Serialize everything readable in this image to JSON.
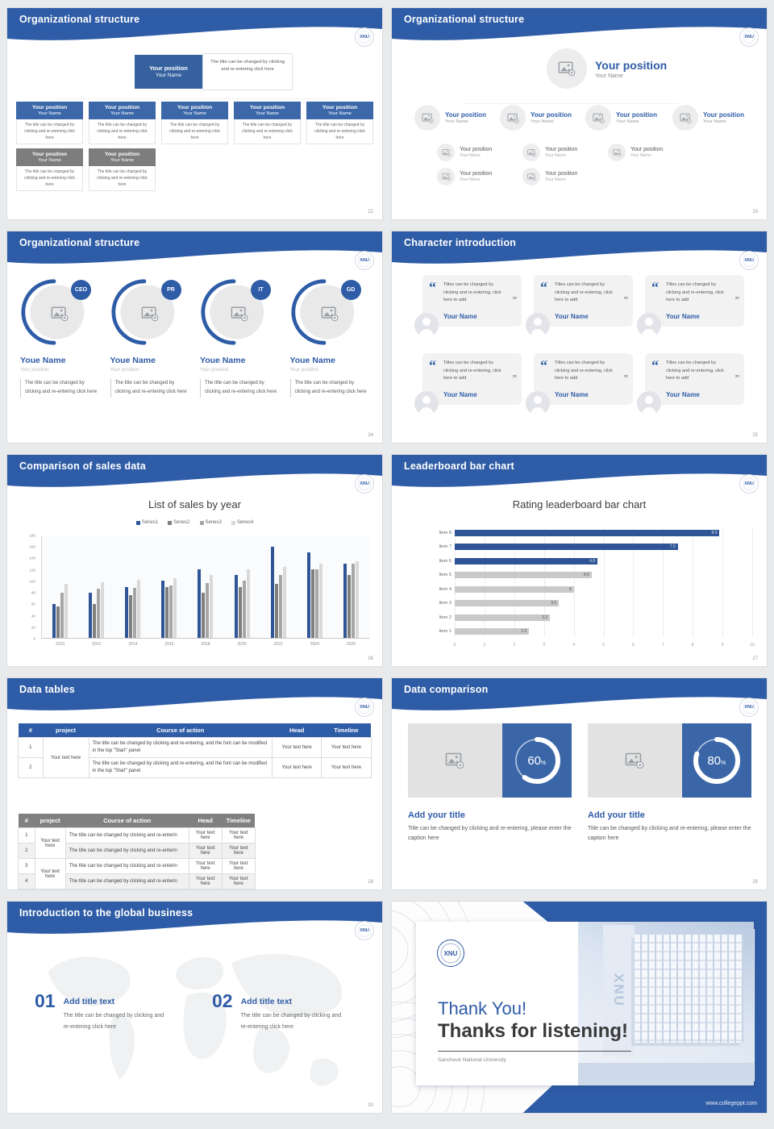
{
  "app": {
    "logo_text": "XNU",
    "accent_blue": "#2e5ca6",
    "box_blue": "#3c68aa",
    "gray_box": "#7d7d7d"
  },
  "slides": {
    "s22": {
      "title": "Organizational structure",
      "page": "22",
      "box_title": "Your position",
      "box_name": "Your Name",
      "desc": "The title can be changed by clicking and re-entering click here"
    },
    "s23": {
      "title": "Organizational structure",
      "page": "23",
      "position": "Your position",
      "name": "Your Name"
    },
    "s24": {
      "title": "Organizational structure",
      "page": "24",
      "badges": [
        "CEO",
        "PR",
        "IT",
        "GD"
      ],
      "name": "Youe Name",
      "position": "Your position",
      "desc": "The title can be changed by clicking and re-entering click here"
    },
    "s25": {
      "title": "Character introduction",
      "page": "25",
      "quote": "Titles can be changed by clicking and re-entering, click here to add",
      "name": "Your Name",
      "open_quote": "“",
      "close_quote": "”"
    },
    "s26": {
      "title": "Comparison of sales data",
      "page": "26"
    },
    "s27": {
      "title": "Leaderboard bar chart",
      "page": "27"
    },
    "s28": {
      "title": "Data tables",
      "page": "28",
      "headers": [
        "#",
        "project",
        "Course of action",
        "Head",
        "Timeline"
      ],
      "t1_rows": [
        "1",
        "2"
      ],
      "t2_rows": [
        "1",
        "2",
        "3",
        "4"
      ],
      "project_cell": "Your text here",
      "t1_course": "The title can be changed by clicking and re-entering, and the font can be modified in the top \"Start\" panel",
      "t2_course": "The title can be changed by clicking and re-enterin",
      "cell": "Your text here"
    },
    "s29": {
      "title": "Data comparison",
      "page": "29",
      "blocks": [
        {
          "pct": 60,
          "pct_label": "60"
        },
        {
          "pct": 80,
          "pct_label": "80"
        }
      ],
      "pct_sign": "%",
      "block_title": "Add your title",
      "caption": "Title can be changed by clicking and re-entering, please enter the caption here"
    },
    "s30": {
      "title": "Introduction to the global business",
      "page": "30",
      "items": [
        {
          "num": "01"
        },
        {
          "num": "02"
        }
      ],
      "item_title": "Add title text",
      "item_desc": "The title can be changed by clicking and re-entering click here"
    },
    "s31": {
      "thank": "Thank You!",
      "listen": "Thanks for listening!",
      "subtitle": "Sancheok National University",
      "site": "www.collegeppt.com",
      "logo": "XNU",
      "photo_mark": "XNU"
    }
  },
  "chart_data": [
    {
      "type": "bar",
      "slide_page": "26",
      "title": "List of sales by year",
      "categories": [
        "2010",
        "2012",
        "2014",
        "2016",
        "2018",
        "2020",
        "2022",
        "2024",
        "2026"
      ],
      "series": [
        {
          "name": "Series1",
          "color": "#2f5597",
          "values": [
            60,
            80,
            90,
            100,
            120,
            110,
            160,
            150,
            130
          ]
        },
        {
          "name": "Series2",
          "color": "#7f7f7f",
          "values": [
            55,
            60,
            75,
            90,
            80,
            90,
            95,
            120,
            110
          ]
        },
        {
          "name": "Series3",
          "color": "#a6a6a6",
          "values": [
            80,
            87,
            88,
            92,
            97,
            100,
            110,
            120,
            130
          ]
        },
        {
          "name": "Series4",
          "color": "#d9d9d9",
          "values": [
            95,
            98,
            102,
            105,
            110,
            120,
            125,
            130,
            135
          ]
        }
      ],
      "ylim": [
        0,
        180
      ],
      "ytick": 20,
      "xlabel": "",
      "ylabel": "",
      "legend_position": "top",
      "grid": false
    },
    {
      "type": "bar",
      "orientation": "horizontal",
      "slide_page": "27",
      "title": "Rating leaderboard bar chart",
      "categories": [
        "Item 8",
        "Item 7",
        "Item 6",
        "Item 5",
        "Item 4",
        "Item 3",
        "Item 2",
        "Item 1"
      ],
      "values": [
        8.9,
        7.5,
        4.8,
        4.6,
        4,
        3.5,
        3.2,
        2.5
      ],
      "labels": [
        "8.9",
        "7.5",
        "4.8",
        "4.6",
        "4",
        "3.5",
        "3.2",
        "2.5"
      ],
      "colors": [
        "#2f5597",
        "#2f5597",
        "#2f5597",
        "#c9c9c9",
        "#c9c9c9",
        "#c9c9c9",
        "#c9c9c9",
        "#c9c9c9"
      ],
      "xlim": [
        0,
        10
      ],
      "xtick": 1,
      "grid": true,
      "legend_position": "none"
    }
  ]
}
